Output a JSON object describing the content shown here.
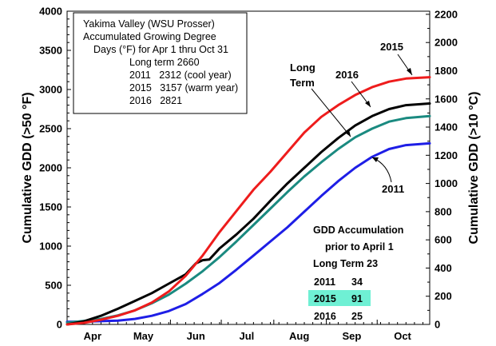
{
  "chart_data": {
    "type": "line",
    "xlabel": "",
    "ylabel": "Cumulative GDD (>50 °F)",
    "ylabel_right": "Cumulative GDD (>10 °C)",
    "ylim": [
      0,
      4000
    ],
    "ylim_right": [
      0,
      2222.2
    ],
    "yticks": [
      "0",
      "500",
      "1000",
      "1500",
      "2000",
      "2500",
      "3000",
      "3500",
      "4000"
    ],
    "yticks_right": [
      "0",
      "200",
      "400",
      "600",
      "800",
      "1000",
      "1200",
      "1400",
      "1600",
      "1800",
      "2000",
      "2200"
    ],
    "x_range_days": [
      0,
      214
    ],
    "month_labels": [
      {
        "label": "Apr",
        "day": 15
      },
      {
        "label": "May",
        "day": 45
      },
      {
        "label": "Jun",
        "day": 76
      },
      {
        "label": "Jul",
        "day": 106
      },
      {
        "label": "Aug",
        "day": 137
      },
      {
        "label": "Sep",
        "day": 168
      },
      {
        "label": "Oct",
        "day": 198
      }
    ],
    "month_ticks_days": [
      30,
      61,
      91,
      122,
      153,
      183
    ],
    "grid": false,
    "series": [
      {
        "name": "2015",
        "color": "#ee1c1c",
        "points": [
          [
            0,
            0
          ],
          [
            10,
            20
          ],
          [
            20,
            60
          ],
          [
            30,
            110
          ],
          [
            40,
            180
          ],
          [
            50,
            280
          ],
          [
            60,
            420
          ],
          [
            70,
            620
          ],
          [
            80,
            880
          ],
          [
            90,
            1180
          ],
          [
            100,
            1450
          ],
          [
            110,
            1720
          ],
          [
            120,
            1950
          ],
          [
            130,
            2200
          ],
          [
            140,
            2450
          ],
          [
            150,
            2650
          ],
          [
            160,
            2800
          ],
          [
            170,
            2930
          ],
          [
            180,
            3030
          ],
          [
            190,
            3100
          ],
          [
            200,
            3140
          ],
          [
            214,
            3157
          ]
        ]
      },
      {
        "name": "2016",
        "color": "#000000",
        "points": [
          [
            0,
            0
          ],
          [
            10,
            40
          ],
          [
            20,
            110
          ],
          [
            30,
            200
          ],
          [
            40,
            300
          ],
          [
            50,
            400
          ],
          [
            60,
            520
          ],
          [
            70,
            640
          ],
          [
            76,
            780
          ],
          [
            80,
            820
          ],
          [
            84,
            830
          ],
          [
            90,
            970
          ],
          [
            100,
            1150
          ],
          [
            110,
            1350
          ],
          [
            120,
            1580
          ],
          [
            130,
            1800
          ],
          [
            140,
            2000
          ],
          [
            150,
            2200
          ],
          [
            160,
            2380
          ],
          [
            170,
            2540
          ],
          [
            180,
            2660
          ],
          [
            190,
            2750
          ],
          [
            200,
            2800
          ],
          [
            214,
            2821
          ]
        ]
      },
      {
        "name": "Long Term",
        "color": "#1a8a80",
        "points": [
          [
            0,
            23
          ],
          [
            10,
            45
          ],
          [
            20,
            70
          ],
          [
            30,
            115
          ],
          [
            40,
            180
          ],
          [
            50,
            270
          ],
          [
            60,
            380
          ],
          [
            70,
            520
          ],
          [
            80,
            680
          ],
          [
            90,
            860
          ],
          [
            100,
            1060
          ],
          [
            110,
            1270
          ],
          [
            120,
            1480
          ],
          [
            130,
            1690
          ],
          [
            140,
            1890
          ],
          [
            150,
            2070
          ],
          [
            160,
            2240
          ],
          [
            170,
            2390
          ],
          [
            180,
            2500
          ],
          [
            190,
            2590
          ],
          [
            200,
            2635
          ],
          [
            214,
            2660
          ]
        ]
      },
      {
        "name": "2011",
        "color": "#1e1ee6",
        "points": [
          [
            0,
            34
          ],
          [
            10,
            36
          ],
          [
            20,
            42
          ],
          [
            30,
            48
          ],
          [
            40,
            70
          ],
          [
            50,
            110
          ],
          [
            60,
            170
          ],
          [
            70,
            260
          ],
          [
            80,
            390
          ],
          [
            90,
            530
          ],
          [
            100,
            700
          ],
          [
            110,
            880
          ],
          [
            120,
            1060
          ],
          [
            130,
            1240
          ],
          [
            140,
            1440
          ],
          [
            150,
            1640
          ],
          [
            160,
            1830
          ],
          [
            170,
            2000
          ],
          [
            180,
            2140
          ],
          [
            190,
            2240
          ],
          [
            200,
            2290
          ],
          [
            214,
            2312
          ]
        ]
      }
    ],
    "annotations": [
      {
        "text": "2015",
        "series": "2015"
      },
      {
        "text": "2016",
        "series": "2016"
      },
      {
        "text": "Long",
        "series": "Long Term"
      },
      {
        "text": "Term",
        "series": "Long Term"
      },
      {
        "text": "2011",
        "series": "2011"
      }
    ]
  },
  "legend_box": {
    "lines": [
      "Yakima Valley (WSU Prosser)",
      "Accumulated Growing Degree",
      "Days (°F) for Apr 1 thru Oct 31",
      "Long term 2660",
      "2011   2312 (cool year)",
      "2015   3157 (warm year)",
      "2016   2821"
    ]
  },
  "gdd_prior": {
    "title1": "GDD Accumulation",
    "title2": "prior to April 1",
    "long_term": "Long Term 23",
    "rows": [
      {
        "year": "2011",
        "value": "34",
        "highlight": false
      },
      {
        "year": "2015",
        "value": "91",
        "highlight": true
      },
      {
        "year": "2016",
        "value": "25",
        "highlight": false
      }
    ],
    "highlight_color": "#6ff0d4"
  }
}
